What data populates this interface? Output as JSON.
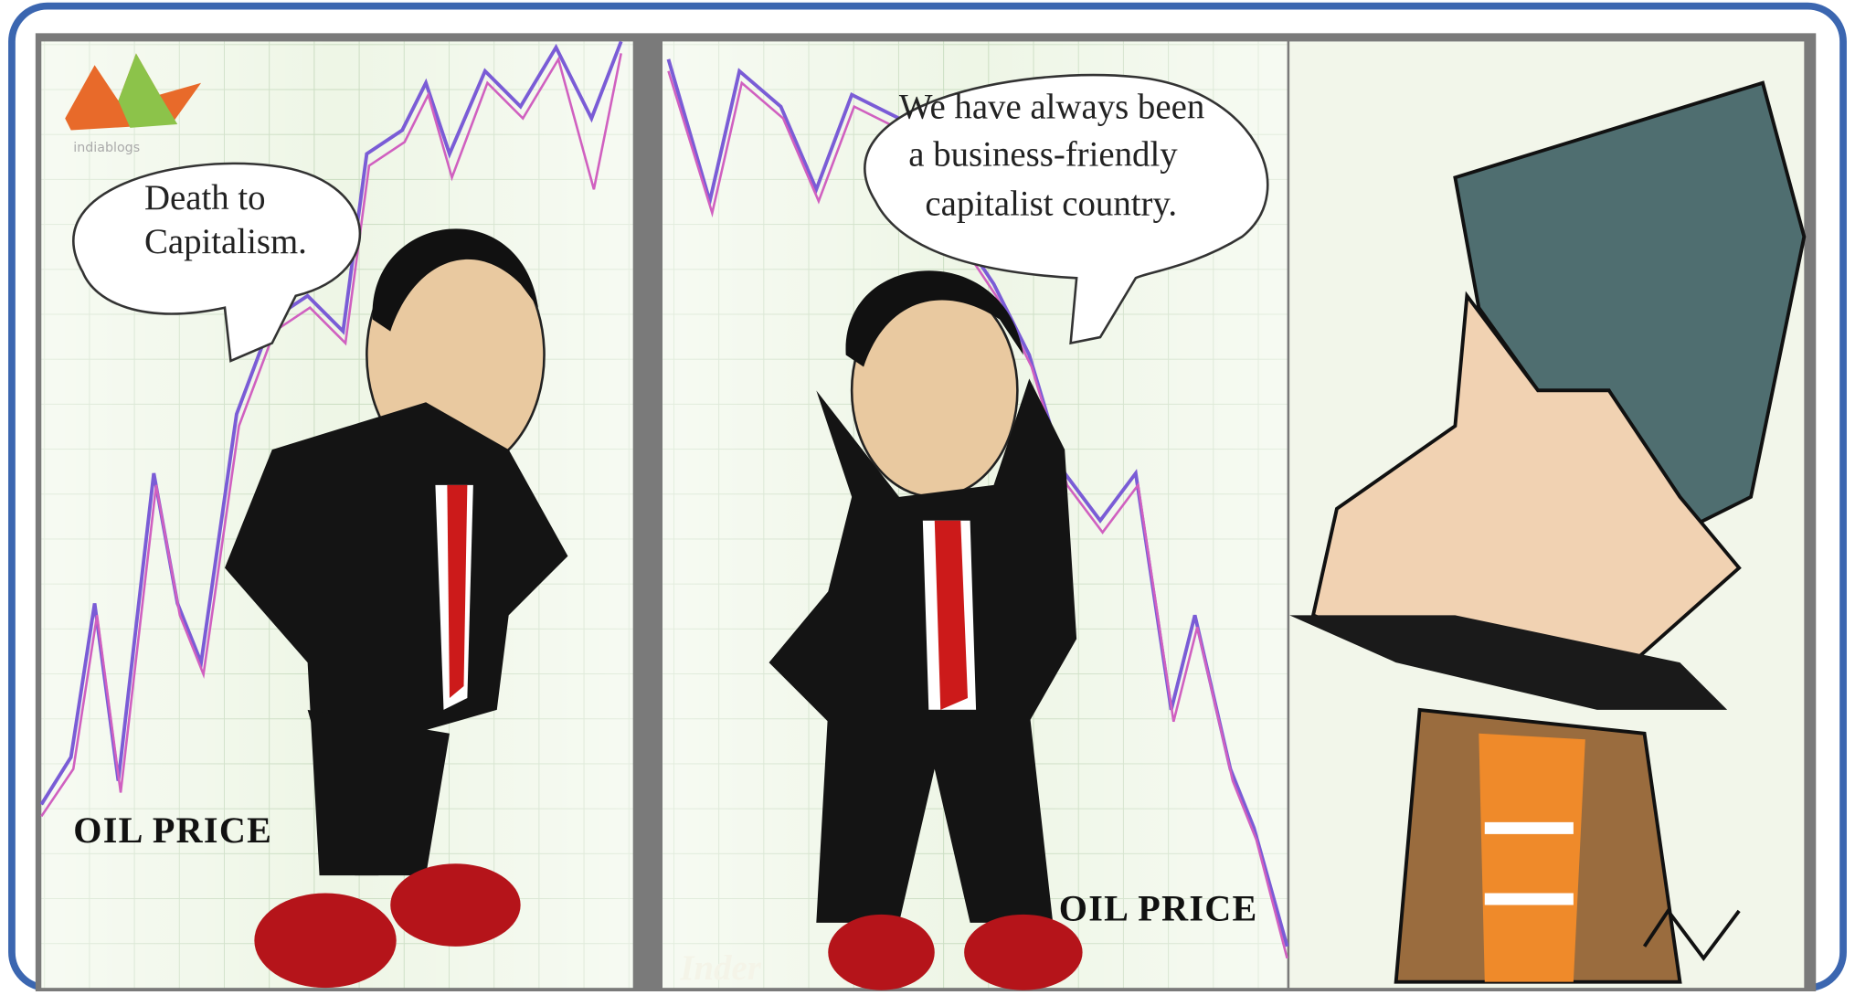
{
  "logo": {
    "text": "indiablogs"
  },
  "panels": [
    {
      "speech": [
        "Death to",
        "Capitalism."
      ],
      "label": "OIL PRICE"
    },
    {
      "speech": [
        "We have always been",
        "a  business-friendly",
        "capitalist country."
      ],
      "label": "OIL PRICE",
      "signature": "Inder"
    }
  ]
}
